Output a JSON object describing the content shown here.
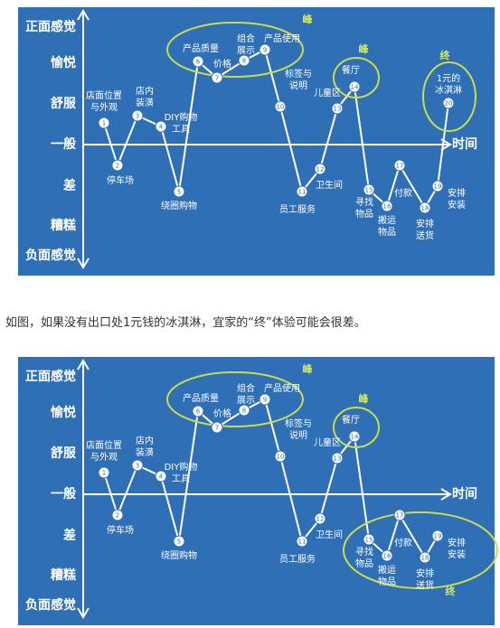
{
  "figures": [
    {
      "axis_labels": [
        "正面感觉",
        "愉悦",
        "舒服",
        "一般",
        "差",
        "糟糕",
        "负面感觉"
      ],
      "time_label": "时间",
      "nodes": [
        {
          "number": "1",
          "label": [
            "店面位置",
            "与外观"
          ]
        },
        {
          "number": "2",
          "label": [
            "停车场"
          ]
        },
        {
          "number": "3",
          "label": [
            "店内",
            "装潢"
          ]
        },
        {
          "number": "4",
          "label": [
            "DIY购物",
            "工具"
          ]
        },
        {
          "number": "5",
          "label": [
            "绕圈购物"
          ]
        },
        {
          "number": "6",
          "label": [
            "产品质量"
          ]
        },
        {
          "number": "7",
          "label": [
            "价格"
          ]
        },
        {
          "number": "8",
          "label": [
            "组合",
            "展示"
          ]
        },
        {
          "number": "9",
          "label": [
            "产品使用"
          ]
        },
        {
          "number": "10",
          "label": [
            "标签与",
            "说明"
          ]
        },
        {
          "number": "11",
          "label": [
            "员工服务"
          ]
        },
        {
          "number": "12",
          "label": [
            "卫生间"
          ]
        },
        {
          "number": "13",
          "label": [
            "儿童区"
          ]
        },
        {
          "number": "14",
          "label": [
            "餐厅"
          ]
        },
        {
          "number": "15",
          "label": [
            "寻找",
            "物品"
          ]
        },
        {
          "number": "16",
          "label": [
            "搬运",
            "物品"
          ]
        },
        {
          "number": "17",
          "label": [
            "付款"
          ]
        },
        {
          "number": "18",
          "label": [
            "安排",
            "送货"
          ]
        },
        {
          "number": "19",
          "label": [
            "安排",
            "安装"
          ]
        },
        {
          "number": "20",
          "label": [
            "1元的",
            "冰淇淋"
          ]
        }
      ],
      "highlights": [
        "峰",
        "峰",
        "终"
      ]
    },
    {
      "axis_labels": [
        "正面感觉",
        "愉悦",
        "舒服",
        "一般",
        "差",
        "糟糕",
        "负面感觉"
      ],
      "time_label": "时间",
      "nodes": [
        {
          "number": "1",
          "label": [
            "店面位置",
            "与外观"
          ]
        },
        {
          "number": "2",
          "label": [
            "停车场"
          ]
        },
        {
          "number": "3",
          "label": [
            "店内",
            "装潢"
          ]
        },
        {
          "number": "4",
          "label": [
            "DIY购物",
            "工具"
          ]
        },
        {
          "number": "5",
          "label": [
            "绕圈购物"
          ]
        },
        {
          "number": "6",
          "label": [
            "产品质量"
          ]
        },
        {
          "number": "7",
          "label": [
            "价格"
          ]
        },
        {
          "number": "8",
          "label": [
            "组合",
            "展示"
          ]
        },
        {
          "number": "9",
          "label": [
            "产品使用"
          ]
        },
        {
          "number": "10",
          "label": [
            "标签与",
            "说明"
          ]
        },
        {
          "number": "11",
          "label": [
            "员工服务"
          ]
        },
        {
          "number": "12",
          "label": [
            "卫生间"
          ]
        },
        {
          "number": "13",
          "label": [
            "儿童区"
          ]
        },
        {
          "number": "14",
          "label": [
            "餐厅"
          ]
        },
        {
          "number": "15",
          "label": [
            "寻找",
            "物品"
          ]
        },
        {
          "number": "16",
          "label": [
            "搬运",
            "物品"
          ]
        },
        {
          "number": "17",
          "label": [
            "付款"
          ]
        },
        {
          "number": "18",
          "label": [
            "安排",
            "送货"
          ]
        },
        {
          "number": "19",
          "label": [
            "安排",
            "安装"
          ]
        }
      ],
      "highlights": [
        "峰",
        "峰",
        "终"
      ]
    }
  ],
  "caption": "如图，如果没有出口处1元钱的冰淇淋，宜家的“终”体验可能会很差。"
}
